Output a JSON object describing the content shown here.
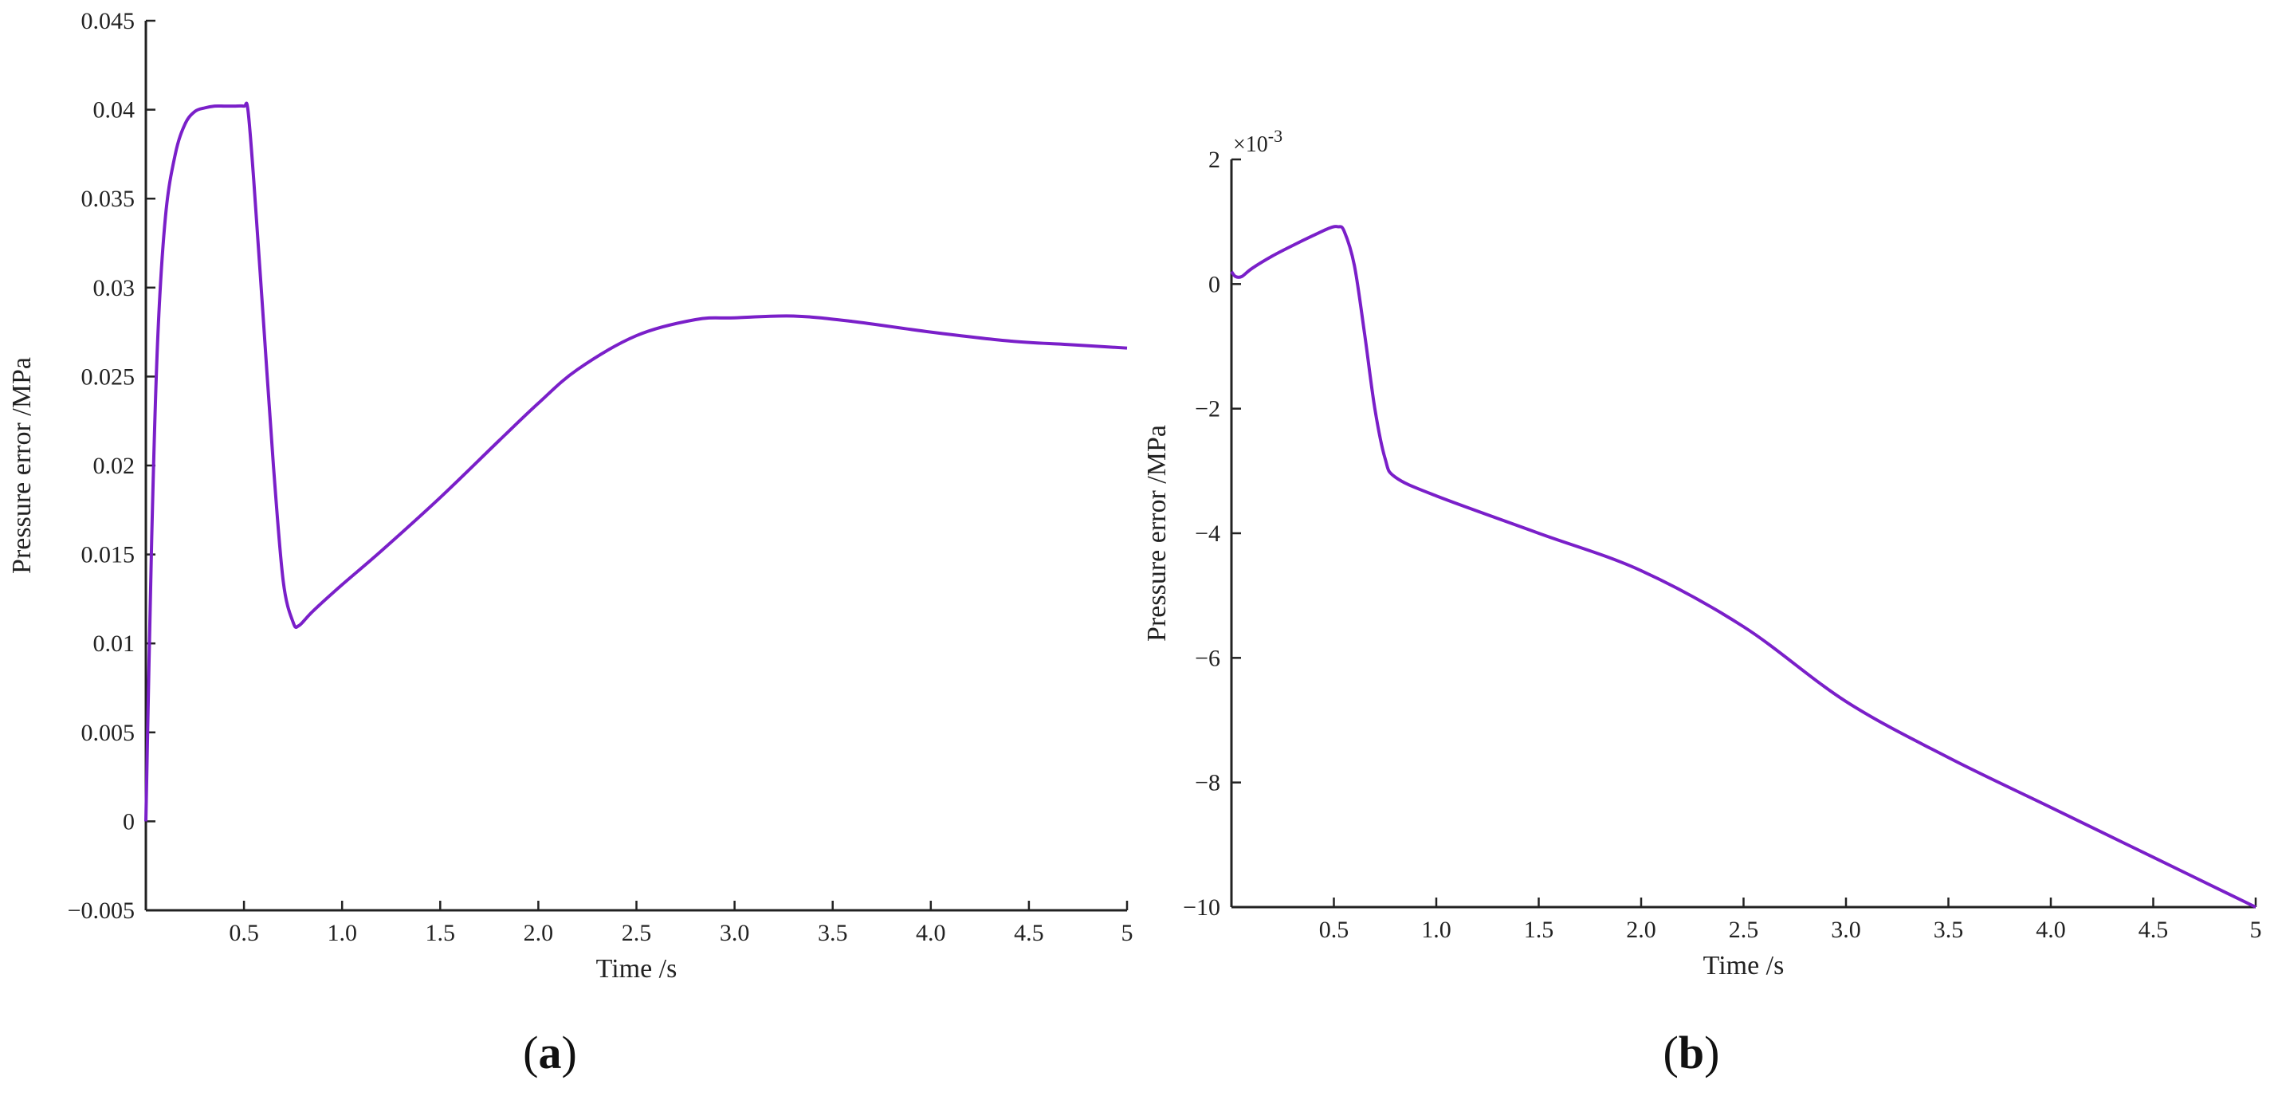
{
  "panels": [
    {
      "panel_label": "(a)",
      "chart_data": {
        "type": "line",
        "xlabel": "Time /s",
        "ylabel": "Pressure error /MPa",
        "xlim": [
          0,
          5
        ],
        "ylim": [
          -0.005,
          0.045
        ],
        "x_ticks": [
          0.5,
          1.0,
          1.5,
          2.0,
          2.5,
          3.0,
          3.5,
          4.0,
          4.5,
          5
        ],
        "x_tick_labels": [
          "0.5",
          "1.0",
          "1.5",
          "2.0",
          "2.5",
          "3.0",
          "3.5",
          "4.0",
          "4.5",
          "5"
        ],
        "y_ticks": [
          -0.005,
          0,
          0.005,
          0.01,
          0.015,
          0.02,
          0.025,
          0.03,
          0.035,
          0.04,
          0.045
        ],
        "y_tick_labels": [
          "−0.005",
          "0",
          "0.005",
          "0.01",
          "0.015",
          "0.02",
          "0.025",
          "0.03",
          "0.035",
          "0.04",
          "0.045"
        ],
        "grid": false,
        "line_color": "#7a1fc9",
        "series": [
          {
            "x": [
              0,
              0.03,
              0.06,
              0.1,
              0.15,
              0.2,
              0.25,
              0.3,
              0.35,
              0.4,
              0.45,
              0.5,
              0.52,
              0.55,
              0.6,
              0.65,
              0.7,
              0.75,
              0.78,
              0.85,
              1.0,
              1.2,
              1.5,
              1.8,
              2.0,
              2.2,
              2.5,
              2.8,
              3.0,
              3.3,
              3.6,
              4.0,
              4.4,
              4.7,
              5.0
            ],
            "y": [
              0,
              0.016,
              0.027,
              0.034,
              0.0375,
              0.0392,
              0.0399,
              0.0401,
              0.0402,
              0.0402,
              0.0402,
              0.0402,
              0.04,
              0.036,
              0.028,
              0.02,
              0.0135,
              0.0112,
              0.011,
              0.0118,
              0.0133,
              0.0152,
              0.0182,
              0.0214,
              0.0235,
              0.0254,
              0.0273,
              0.0282,
              0.0283,
              0.0284,
              0.0281,
              0.0275,
              0.027,
              0.0268,
              0.0266
            ]
          }
        ]
      }
    },
    {
      "panel_label": "(b)",
      "chart_data": {
        "type": "line",
        "xlabel": "Time /s",
        "ylabel": "Pressure error /MPa",
        "y_scale_label": "×10",
        "y_scale_exponent": "-3",
        "xlim": [
          0,
          5
        ],
        "ylim": [
          -10,
          2
        ],
        "x_ticks": [
          0.5,
          1.0,
          1.5,
          2.0,
          2.5,
          3.0,
          3.5,
          4.0,
          4.5,
          5
        ],
        "x_tick_labels": [
          "0.5",
          "1.0",
          "1.5",
          "2.0",
          "2.5",
          "3.0",
          "3.5",
          "4.0",
          "4.5",
          "5"
        ],
        "y_ticks": [
          -10,
          -8,
          -6,
          -4,
          -2,
          0,
          2
        ],
        "y_tick_labels": [
          "−10",
          "−8",
          "−6",
          "−4",
          "−2",
          "0",
          "2"
        ],
        "grid": false,
        "line_color": "#7a1fc9",
        "series": [
          {
            "x": [
              0,
              0.02,
              0.05,
              0.1,
              0.2,
              0.3,
              0.4,
              0.48,
              0.52,
              0.55,
              0.6,
              0.65,
              0.7,
              0.75,
              0.8,
              1.0,
              1.5,
              2.0,
              2.5,
              3.0,
              3.5,
              4.0,
              4.5,
              5.0
            ],
            "y": [
              0.2,
              0.12,
              0.12,
              0.25,
              0.45,
              0.62,
              0.78,
              0.9,
              0.92,
              0.85,
              0.3,
              -0.8,
              -2.0,
              -2.8,
              -3.1,
              -3.4,
              -4.0,
              -4.6,
              -5.5,
              -6.7,
              -7.6,
              -8.4,
              -9.2,
              -10.0
            ]
          }
        ]
      }
    }
  ]
}
